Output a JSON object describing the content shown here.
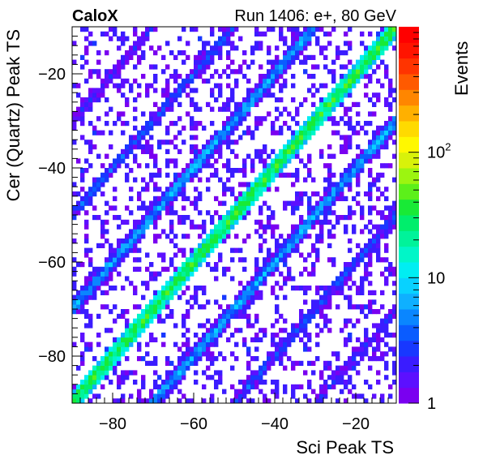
{
  "chart_data": {
    "type": "heatmap",
    "title_left": "CaloX",
    "title_right": "Run 1406: e+, 80 GeV",
    "xlabel": "Sci Peak TS",
    "ylabel": "Cer (Quartz) Peak TS",
    "zlabel": "Events",
    "xlim": [
      -90,
      -10
    ],
    "ylim": [
      -90,
      -10
    ],
    "zlim": [
      1,
      1000
    ],
    "zscale": "log",
    "bins": {
      "nx": 80,
      "ny": 80
    },
    "x_ticks": [
      "-80",
      "-60",
      "-40",
      "-20"
    ],
    "y_ticks": [
      "-80",
      "-60",
      "-40",
      "-20"
    ],
    "z_ticks": [
      {
        "value": 1,
        "label": "1"
      },
      {
        "value": 10,
        "label": "10"
      },
      {
        "value": 100,
        "label": "10",
        "sup": "2"
      }
    ],
    "bands": [
      {
        "name": "main diagonal",
        "offset": 0,
        "peak_events": 35,
        "width_bins": 1.3
      },
      {
        "offset": 20,
        "peak_events": 6,
        "width_bins": 1.2
      },
      {
        "offset": -20,
        "peak_events": 6,
        "width_bins": 1.2
      },
      {
        "offset": 40,
        "peak_events": 3,
        "width_bins": 1.2
      },
      {
        "offset": -40,
        "peak_events": 3,
        "width_bins": 1.2
      },
      {
        "offset": 60,
        "peak_events": 2,
        "width_bins": 1.2
      },
      {
        "offset": -60,
        "peak_events": 2,
        "width_bins": 1.2
      }
    ],
    "background_occupancy": 0.27,
    "palette": [
      "#7a00f0",
      "#5c10ff",
      "#3a1cff",
      "#1838ff",
      "#0a5cff",
      "#0a86ff",
      "#0fb0ff",
      "#08d2ff",
      "#00eef2",
      "#00f6c8",
      "#00f39a",
      "#00ee6c",
      "#18ea36",
      "#5cf01a",
      "#9cf510",
      "#d8f20a",
      "#fff800",
      "#ffda00",
      "#ffb000",
      "#ff8600",
      "#ff5a00",
      "#ff3400",
      "#ff1400",
      "#ff0000"
    ]
  }
}
